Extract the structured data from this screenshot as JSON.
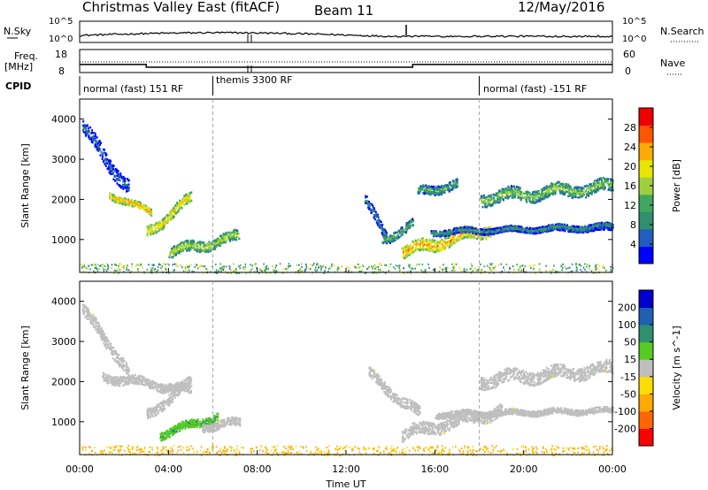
{
  "header": {
    "station": "Christmas Valley East (fitACF)",
    "beam": "Beam 11",
    "date": "12/May/2016"
  },
  "strip": {
    "nsky_label": "N.Sky",
    "nsky_ticks": [
      "10^5",
      "10^0"
    ],
    "nsearch_label": "N.Search",
    "nsearch_ticks": [
      "10^5",
      "10^0"
    ],
    "freq_label_1": "Freq.",
    "freq_label_2": "[MHz]",
    "freq_ticks": [
      "18",
      "8"
    ],
    "nave_label": "Nave",
    "nave_ticks": [
      "60",
      "0"
    ],
    "cpid_label": "CPID",
    "cpid_segments": [
      "normal (fast) 151 RF",
      "themis 3300 RF",
      "normal (fast) -151 RF"
    ]
  },
  "axes": {
    "ylabel": "Slant Range [km]",
    "xlabel": "Time UT",
    "y_ticks": [
      "1000",
      "2000",
      "3000",
      "4000"
    ],
    "x_ticks": [
      "00:00",
      "04:00",
      "08:00",
      "12:00",
      "16:00",
      "20:00",
      "00:00"
    ]
  },
  "power_bar": {
    "label": "Power [dB]",
    "ticks": [
      "28",
      "24",
      "20",
      "16",
      "12",
      "8",
      "4"
    ],
    "colors": [
      "#0000ff",
      "#1f5fbf",
      "#2f8f6f",
      "#3fa75f",
      "#9fcf3f",
      "#e6e600",
      "#ffaa00",
      "#ff5500",
      "#ee0000"
    ]
  },
  "velocity_bar": {
    "label": "Velocity [m s^-1]",
    "ticks": [
      "200",
      "100",
      "50",
      "15",
      "-15",
      "-50",
      "-100",
      "-200"
    ],
    "colors": [
      "#ff0000",
      "#ff6600",
      "#ffaa00",
      "#ffdd00",
      "#bfbfbf",
      "#55cc22",
      "#2f8f6f",
      "#2060b0",
      "#0000cc"
    ]
  },
  "chart_data": {
    "type": "heatmap",
    "x_range_hours": [
      0,
      24
    ],
    "y_range_km": [
      180,
      4500
    ],
    "cpid_switch_hours": [
      6,
      18
    ],
    "freq_mhz_levels": [
      {
        "from": 0,
        "to": 3,
        "value": 11.5
      },
      {
        "from": 3,
        "to": 15,
        "value": 10.3
      },
      {
        "from": 15,
        "to": 24,
        "value": 11.5
      }
    ],
    "power_features": [
      {
        "t0": 0.1,
        "t1": 2.2,
        "r0": 3800,
        "r1": 2300,
        "w": 350,
        "v": 8
      },
      {
        "t0": 1.3,
        "t1": 3.2,
        "r0": 2150,
        "r1": 1700,
        "w": 160,
        "v": 24
      },
      {
        "t0": 3.0,
        "t1": 5.0,
        "r0": 1200,
        "r1": 2050,
        "w": 260,
        "v": 22
      },
      {
        "t0": 4.0,
        "t1": 7.2,
        "r0": 700,
        "r1": 1100,
        "w": 260,
        "v": 18
      },
      {
        "t0": 12.8,
        "t1": 13.8,
        "r0": 2000,
        "r1": 1100,
        "w": 260,
        "v": 10
      },
      {
        "t0": 13.6,
        "t1": 15.0,
        "r0": 1000,
        "r1": 1400,
        "w": 220,
        "v": 14
      },
      {
        "t0": 14.5,
        "t1": 18.5,
        "r0": 700,
        "r1": 1300,
        "w": 300,
        "v": 24
      },
      {
        "t0": 15.2,
        "t1": 17.0,
        "r0": 2200,
        "r1": 2400,
        "w": 220,
        "v": 14
      },
      {
        "t0": 18.0,
        "t1": 24.0,
        "r0": 2050,
        "r1": 2350,
        "w": 300,
        "v": 16
      },
      {
        "t0": 18.0,
        "t1": 24.0,
        "r0": 1250,
        "r1": 1300,
        "w": 120,
        "v": 8
      },
      {
        "t0": 15.8,
        "t1": 24.0,
        "r0": 1200,
        "r1": 1350,
        "w": 140,
        "v": 12
      }
    ],
    "velocity_features": [
      {
        "t0": 0.1,
        "t1": 2.2,
        "r0": 3800,
        "r1": 2300,
        "w": 300,
        "v": 0
      },
      {
        "t0": 1.0,
        "t1": 5.0,
        "r0": 2150,
        "r1": 1800,
        "w": 220,
        "v": 0
      },
      {
        "t0": 3.0,
        "t1": 5.0,
        "r0": 1200,
        "r1": 2000,
        "w": 250,
        "v": 5
      },
      {
        "t0": 3.6,
        "t1": 6.2,
        "r0": 700,
        "r1": 1150,
        "w": 200,
        "v": 40
      },
      {
        "t0": 5.5,
        "t1": 7.2,
        "r0": 900,
        "r1": 1000,
        "w": 200,
        "v": 0
      },
      {
        "t0": 13.0,
        "t1": 15.3,
        "r0": 2200,
        "r1": 1200,
        "w": 260,
        "v": 0
      },
      {
        "t0": 14.5,
        "t1": 19.0,
        "r0": 700,
        "r1": 1300,
        "w": 300,
        "v": 0
      },
      {
        "t0": 18.0,
        "t1": 24.0,
        "r0": 2050,
        "r1": 2350,
        "w": 320,
        "v": 0
      },
      {
        "t0": 16.0,
        "t1": 24.0,
        "r0": 1200,
        "r1": 1300,
        "w": 140,
        "v": 0
      }
    ],
    "ground_scatter_band_km": [
      180,
      420
    ]
  }
}
